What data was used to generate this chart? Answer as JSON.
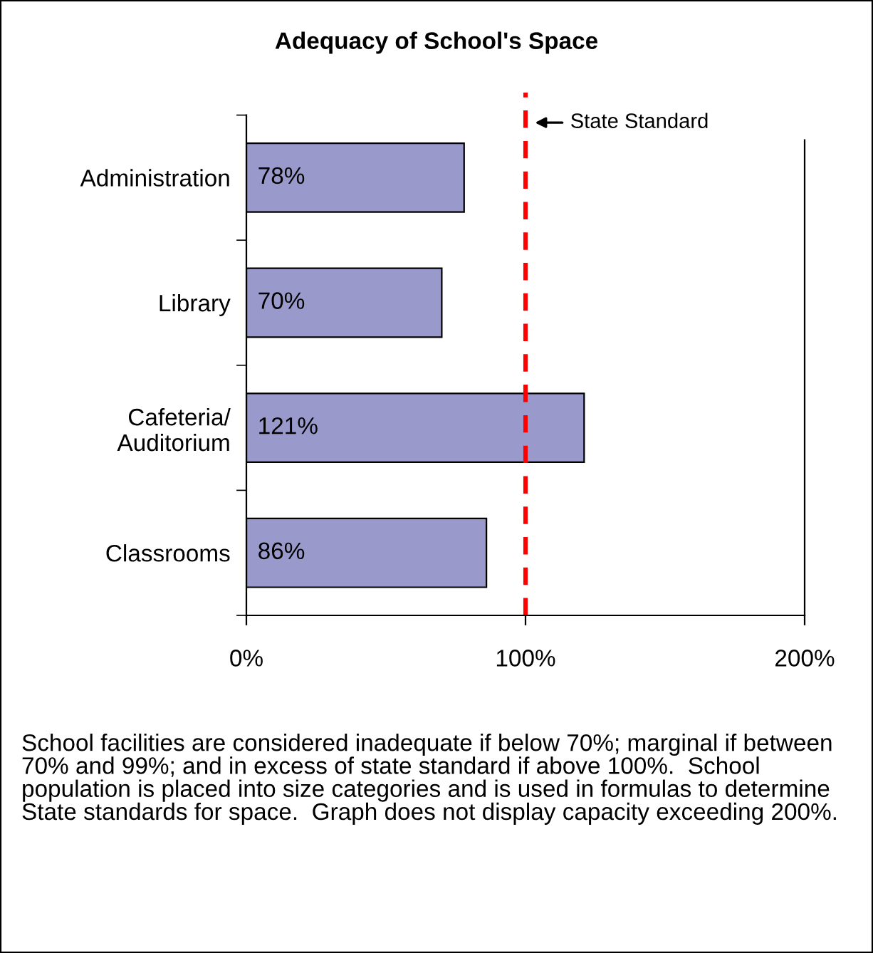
{
  "chart_data": {
    "type": "bar",
    "orientation": "horizontal",
    "title": "Adequacy of School's Space",
    "categories": [
      "Administration",
      "Library",
      "Cafeteria/\nAuditorium",
      "Classrooms"
    ],
    "values": [
      78,
      70,
      121,
      86
    ],
    "value_labels": [
      "78%",
      "70%",
      "121%",
      "86%"
    ],
    "color": "#9999cc",
    "xlim": [
      0,
      200
    ],
    "xticks": [
      {
        "value": 0,
        "label": "0%"
      },
      {
        "value": 100,
        "label": "100%"
      },
      {
        "value": 200,
        "label": "200%"
      }
    ],
    "ref_lines": [
      {
        "axis": "x",
        "value": 100,
        "label": "State Standard",
        "color": "#ff0000",
        "line_style": "dashed"
      }
    ],
    "grid": false,
    "legend": false,
    "annotations": [
      "School facilities are considered inadequate if below 70%; marginal if between 70% and 99%; and in excess of state standard if above 100%.  School population is placed into size categories and is used in formulas to determine State standards for space.  Graph does not display capacity exceeding 200%."
    ]
  }
}
